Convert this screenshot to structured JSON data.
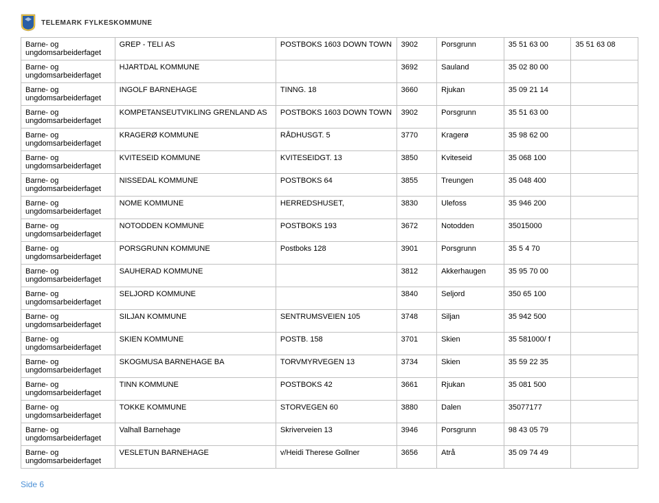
{
  "header": {
    "org_name": "TELEMARK FYLKESKOMMUNE"
  },
  "table": {
    "rows": [
      {
        "c0": "Barne- og ungdomsarbeiderfaget",
        "c1": "GREP - TELI AS",
        "c2": "POSTBOKS 1603 DOWN TOWN",
        "c3": "3902",
        "c4": "Porsgrunn",
        "c5": "35 51 63 00",
        "c6": "35 51 63 08"
      },
      {
        "c0": "Barne- og ungdomsarbeiderfaget",
        "c1": "HJARTDAL KOMMUNE",
        "c2": "",
        "c3": "3692",
        "c4": "Sauland",
        "c5": "35 02 80 00",
        "c6": ""
      },
      {
        "c0": "Barne- og ungdomsarbeiderfaget",
        "c1": "INGOLF BARNEHAGE",
        "c2": "TINNG. 18",
        "c3": "3660",
        "c4": "Rjukan",
        "c5": "35 09 21 14",
        "c6": ""
      },
      {
        "c0": "Barne- og ungdomsarbeiderfaget",
        "c1": "KOMPETANSEUTVIKLING GRENLAND AS",
        "c2": "POSTBOKS 1603 DOWN TOWN",
        "c3": "3902",
        "c4": "Porsgrunn",
        "c5": "35 51 63 00",
        "c6": ""
      },
      {
        "c0": "Barne- og ungdomsarbeiderfaget",
        "c1": "KRAGERØ KOMMUNE",
        "c2": "RÅDHUSGT. 5",
        "c3": "3770",
        "c4": "Kragerø",
        "c5": "35 98 62 00",
        "c6": ""
      },
      {
        "c0": "Barne- og ungdomsarbeiderfaget",
        "c1": "KVITESEID KOMMUNE",
        "c2": "KVITESEIDGT. 13",
        "c3": "3850",
        "c4": "Kviteseid",
        "c5": "35 068 100",
        "c6": ""
      },
      {
        "c0": "Barne- og ungdomsarbeiderfaget",
        "c1": "NISSEDAL KOMMUNE",
        "c2": "POSTBOKS 64",
        "c3": "3855",
        "c4": "Treungen",
        "c5": "35 048 400",
        "c6": ""
      },
      {
        "c0": "Barne- og ungdomsarbeiderfaget",
        "c1": "NOME KOMMUNE",
        "c2": "HERREDSHUSET,",
        "c3": "3830",
        "c4": "Ulefoss",
        "c5": "35 946 200",
        "c6": ""
      },
      {
        "c0": "Barne- og ungdomsarbeiderfaget",
        "c1": "NOTODDEN KOMMUNE",
        "c2": "POSTBOKS 193",
        "c3": "3672",
        "c4": "Notodden",
        "c5": "35015000",
        "c6": ""
      },
      {
        "c0": "Barne- og ungdomsarbeiderfaget",
        "c1": "PORSGRUNN KOMMUNE",
        "c2": "Postboks 128",
        "c3": "3901",
        "c4": "Porsgrunn",
        "c5": "35  5 4  70",
        "c6": ""
      },
      {
        "c0": "Barne- og ungdomsarbeiderfaget",
        "c1": "SAUHERAD KOMMUNE",
        "c2": "",
        "c3": "3812",
        "c4": "Akkerhaugen",
        "c5": "35 95 70 00",
        "c6": ""
      },
      {
        "c0": "Barne- og ungdomsarbeiderfaget",
        "c1": "SELJORD KOMMUNE",
        "c2": "",
        "c3": "3840",
        "c4": "Seljord",
        "c5": "350 65 100",
        "c6": ""
      },
      {
        "c0": "Barne- og ungdomsarbeiderfaget",
        "c1": "SILJAN KOMMUNE",
        "c2": "SENTRUMSVEIEN 105",
        "c3": "3748",
        "c4": "Siljan",
        "c5": "35 942 500",
        "c6": ""
      },
      {
        "c0": "Barne- og ungdomsarbeiderfaget",
        "c1": "SKIEN KOMMUNE",
        "c2": "POSTB. 158",
        "c3": "3701",
        "c4": "Skien",
        "c5": "35 581000/ f",
        "c6": ""
      },
      {
        "c0": "Barne- og ungdomsarbeiderfaget",
        "c1": "SKOGMUSA BARNEHAGE BA",
        "c2": "TORVMYRVEGEN 13",
        "c3": "3734",
        "c4": "Skien",
        "c5": "35 59 22 35",
        "c6": ""
      },
      {
        "c0": "Barne- og ungdomsarbeiderfaget",
        "c1": "TINN KOMMUNE",
        "c2": "POSTBOKS 42",
        "c3": "3661",
        "c4": "Rjukan",
        "c5": "35 081 500",
        "c6": ""
      },
      {
        "c0": "Barne- og ungdomsarbeiderfaget",
        "c1": "TOKKE KOMMUNE",
        "c2": "STORVEGEN 60",
        "c3": "3880",
        "c4": "Dalen",
        "c5": "35077177",
        "c6": ""
      },
      {
        "c0": "Barne- og ungdomsarbeiderfaget",
        "c1": "Valhall Barnehage",
        "c2": "Skriverveien 13",
        "c3": "3946",
        "c4": "Porsgrunn",
        "c5": "98 43 05 79",
        "c6": ""
      },
      {
        "c0": "Barne- og ungdomsarbeiderfaget",
        "c1": "VESLETUN BARNEHAGE",
        "c2": "v/Heidi Therese Gollner",
        "c3": "3656",
        "c4": "Atrå",
        "c5": "35 09 74 49",
        "c6": ""
      }
    ]
  },
  "footer": {
    "page_label": "Side 6"
  },
  "colors": {
    "border": "#bfbfbf",
    "footer_text": "#4a8fd6",
    "logo_yellow": "#f4c430",
    "logo_blue": "#2a5fa5"
  }
}
